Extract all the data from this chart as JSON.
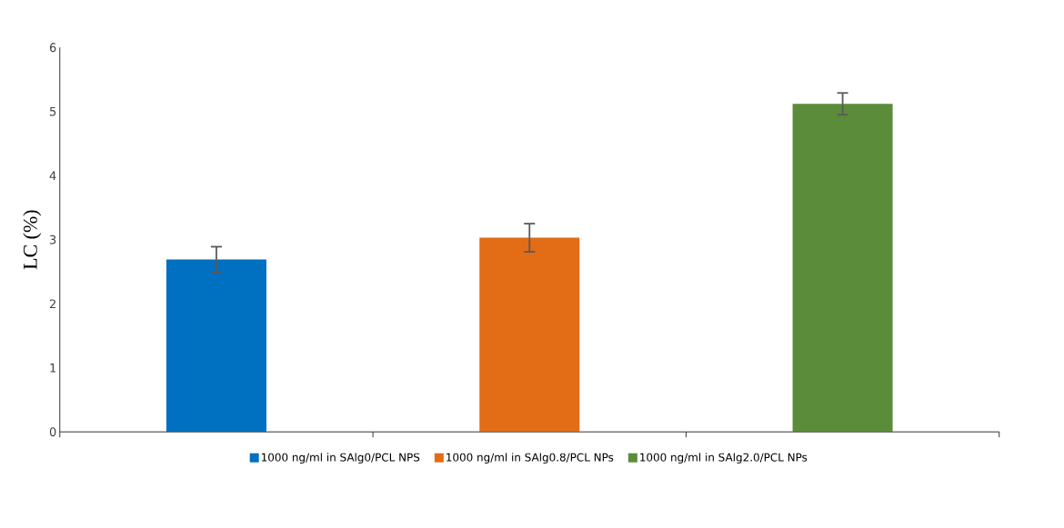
{
  "chart_data": {
    "type": "bar",
    "ylabel": "LC (%)",
    "categories": [
      null,
      null,
      null
    ],
    "series": [
      {
        "name": "1000 ng/ml in SAlg0/PCL NPS",
        "color": "#0070c0",
        "values": [
          2.69,
          null,
          null
        ],
        "errors": [
          0.2,
          null,
          null
        ]
      },
      {
        "name": "1000 ng/ml in SAlg0.8/PCL NPs",
        "color": "#e36c17",
        "values": [
          null,
          3.03,
          null
        ],
        "errors": [
          null,
          0.22,
          null
        ]
      },
      {
        "name": "1000 ng/ml in SAlg2.0/PCL NPs",
        "color": "#5b8c3a",
        "values": [
          null,
          null,
          5.12
        ],
        "errors": [
          null,
          null,
          0.17
        ]
      }
    ],
    "ylim": [
      0,
      6
    ],
    "yticks": [
      0,
      1,
      2,
      3,
      4,
      5,
      6
    ],
    "legend": "bottom"
  }
}
